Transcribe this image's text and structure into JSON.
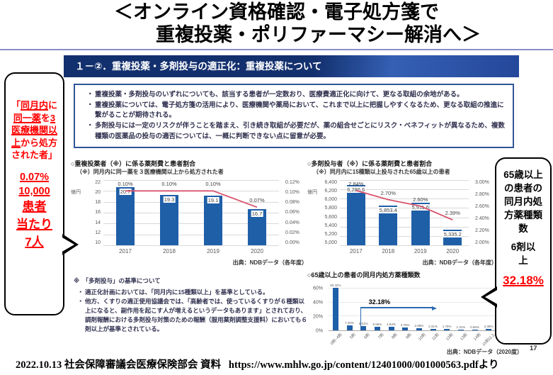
{
  "page_title": {
    "line1": "＜オンライン資格確認・電子処方箋で",
    "line2": "重複投薬・ポリファーマシー解消へ＞"
  },
  "slide": {
    "header_title": "１－②．重複投薬・多剤投与の適正化：重複投薬について",
    "bullets": [
      "重複投薬・多剤投与のいずれについても、該当する患者が一定数おり、医療費適正化に向けて、更なる取組の余地がある。",
      "重複投薬については、電子処方箋の活用により、医療機関や薬局において、これまで以上に把握しやすくなるため、更なる取組の推進に繋がることが期待される。",
      "多剤投与には一定のリスクが伴うことを踏まえ、引き続き取組が必要だが、薬の組合せごとにリスク・ベネフィットが異なるため、複数種類の医薬品の投与の適否については、一概に判断できない点に留意が必要。"
    ],
    "notes": {
      "heading": "※　「多剤投与」の基準について",
      "items": [
        "適正化計画においては、「同月内に15種類以上」を基準としている。",
        "他方、くすりの適正使用協議会では、「高齢者では、使っているくすりが６種類以上になると、副作用を起こす人が増えるというデータもあります」とされており、調剤報酬における多剤投与対策のための報酬（服用薬剤調整支援料）においても６剤以上が基準とされている。"
      ]
    },
    "page_number": "17"
  },
  "left_bubble": {
    "quote_open": "「",
    "quote_u1": "同月内",
    "quote_t1": "に",
    "quote_u2": "同一薬",
    "quote_t2": "を",
    "quote_u3": "3医療機関以上",
    "quote_t3": "から処方された者」",
    "stats": [
      "0.07%",
      "10,000",
      "患者",
      "当たり",
      "7人"
    ]
  },
  "right_bubble": {
    "label": "65歳以上の患者の同月内処方薬種類数",
    "sub": "6剤以上",
    "stat": "32.18%"
  },
  "colors": {
    "bar": "#1f5fa8",
    "line": "#d9536f",
    "arrow": "#2a6bb0",
    "accent_red": "#ff0000",
    "header_navy": "#13306e"
  },
  "chart_data": [
    {
      "type": "bar+line",
      "title": "○重複投薬者（※）に係る薬剤費と患者割合",
      "subtitle": "（※）同月内に同一薬を３医療機関以上から処方された者",
      "unit_left": "億円",
      "categories": [
        "2017",
        "2018",
        "2019",
        "2020"
      ],
      "bars": {
        "values": [
          20.7,
          19.3,
          19.1,
          16.7
        ],
        "labels": [
          "20.7",
          "19.3",
          "19.1",
          "16.7"
        ]
      },
      "line": {
        "values": [
          0.1,
          0.1,
          0.1,
          0.07
        ],
        "labels": [
          "0.10%",
          "0.10%",
          "0.10%",
          "0.07%"
        ]
      },
      "ylim_left": [
        10,
        22
      ],
      "ylim_right": [
        0,
        0.12
      ],
      "yticks_left": [
        "22",
        "20",
        "18",
        "16",
        "14",
        "12",
        "10"
      ],
      "yticks_right": [
        "0.12%",
        "0.10%",
        "0.08%",
        "0.06%",
        "0.04%",
        "0.02%",
        "0.00%"
      ],
      "source": "出典：NDBデータ（各年度）"
    },
    {
      "type": "bar+line",
      "title": "○多剤投与者（※）に係る薬剤費と患者割合",
      "subtitle": "（※）同月内に15種類以上投与された65歳以上の患者",
      "unit_left": "億円",
      "categories": [
        "2017",
        "2018",
        "2019",
        "2020"
      ],
      "bars": {
        "values": [
          6286.6,
          5853.4,
          5911.6,
          5335.2
        ],
        "labels": [
          "6,286.6",
          "5,853.4",
          "5,911.6",
          "5,335.2"
        ]
      },
      "line": {
        "values": [
          2.84,
          2.7,
          2.6,
          2.39
        ],
        "labels": [
          "2.84%",
          "2.70%",
          "2.60%",
          "2.39%"
        ]
      },
      "ylim_left": [
        5000,
        6400
      ],
      "ylim_right": [
        2.0,
        3.0
      ],
      "yticks_left": [
        "6,400",
        "6,200",
        "6,000",
        "5,800",
        "5,600",
        "5,400",
        "5,200",
        "5,000"
      ],
      "yticks_right": [
        "3.00%",
        "2.80%",
        "2.60%",
        "2.40%",
        "2.20%",
        "2.00%"
      ],
      "source": "出典：NDBデータ（各年度）"
    },
    {
      "type": "bar",
      "title": "○65歳以上の患者の同月内処方薬種類数",
      "categories": [
        "0剤~4剤",
        "5剤",
        "6剤",
        "7剤",
        "8剤",
        "9剤",
        "10剤",
        "11剤",
        "12剤",
        "13剤",
        "14剤",
        "15剤以上"
      ],
      "values": [
        60.42,
        7.4,
        6.51,
        5.56,
        4.63,
        3.76,
        2.98,
        2.31,
        1.76,
        1.31,
        0.96,
        2.39
      ],
      "labels": [
        "60.42%",
        "7.40%",
        "6.51%",
        "5.56%",
        "4.63%",
        "3.76%",
        "2.98%",
        "2.31%",
        "1.76%",
        "1.31%",
        "0.96%",
        "2.39%"
      ],
      "yticks": [
        "60%",
        "40%",
        "20%",
        "0%"
      ],
      "ylim": [
        0,
        70
      ],
      "annotation": {
        "label": "32.18%",
        "value": 32.18
      },
      "source": "出典：NDBデータ（2020度）"
    }
  ],
  "footer": {
    "date_label": "2022.10.13 社会保障審議会医療保険部会 資料",
    "url": "https://www.mhlw.go.jp/content/12401000/001000563.pdf",
    "suffix": "より"
  }
}
